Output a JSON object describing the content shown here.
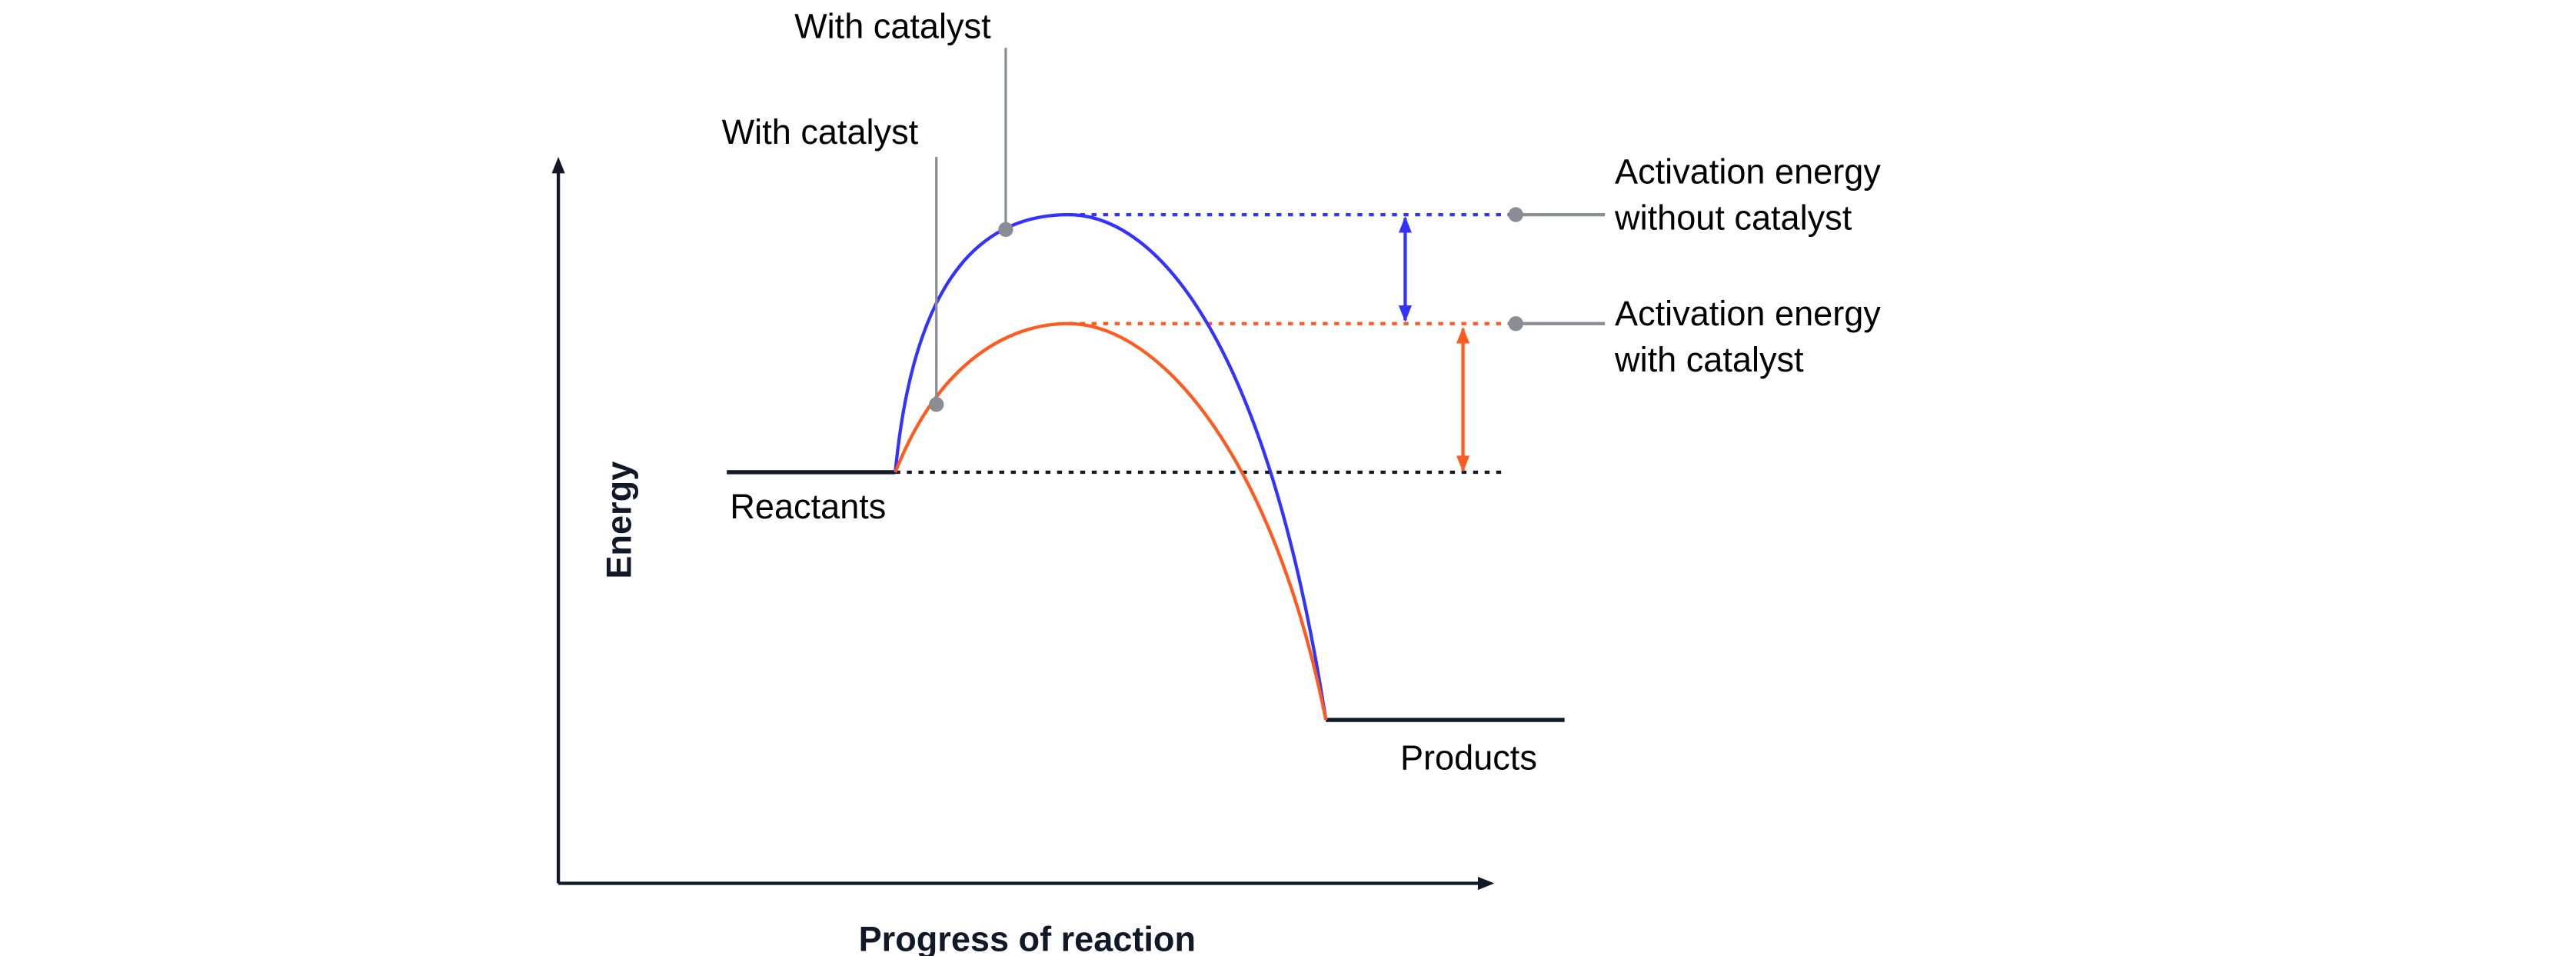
{
  "chart_data": {
    "type": "line",
    "title": "",
    "xlabel": "Progress of reaction",
    "ylabel": "Energy",
    "colors": {
      "without_catalyst": "#3333ff",
      "with_catalyst": "#ff5a1f",
      "axis": "#111827",
      "callout": "#8a8d96"
    },
    "levels": {
      "reactants": 8.3,
      "products": 3.3,
      "peak_without_catalyst": 13.5,
      "peak_with_catalyst": 11.3
    },
    "progress": {
      "reactants_start": 1.8,
      "transition_start": 3.6,
      "peak": 5.45,
      "transition_end": 8.2,
      "products_end": 10.75
    },
    "series": [
      {
        "name": "Without catalyst",
        "peak": 13.5
      },
      {
        "name": "With catalyst",
        "peak": 11.3
      }
    ],
    "labels": {
      "reactants": "Reactants",
      "products": "Products",
      "callout_top": "With catalyst",
      "callout_lower": "With catalyst",
      "ea_without_line1": "Activation energy",
      "ea_without_line2": "without catalyst",
      "ea_with_line1": "Activation energy",
      "ea_with_line2": "with catalyst"
    }
  }
}
